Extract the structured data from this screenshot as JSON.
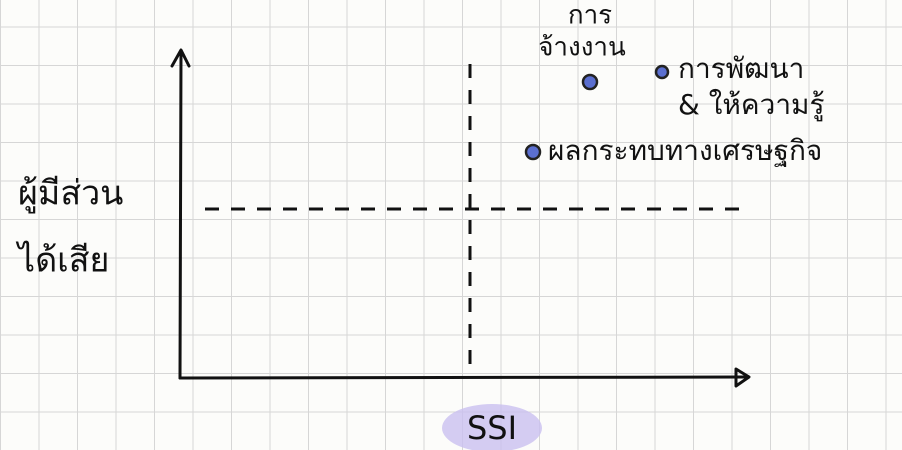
{
  "axes": {
    "y_label": [
      "ผู้มีส่วน",
      "ได้เสีย"
    ],
    "x_label": "SSI"
  },
  "points": [
    {
      "label": [
        "การ",
        "จ้างงาน"
      ]
    },
    {
      "label": [
        "การพัฒนา",
        "& ให้ความรู้"
      ]
    },
    {
      "label": [
        "ผลกระทบทางเศรษฐกิจ"
      ]
    }
  ]
}
